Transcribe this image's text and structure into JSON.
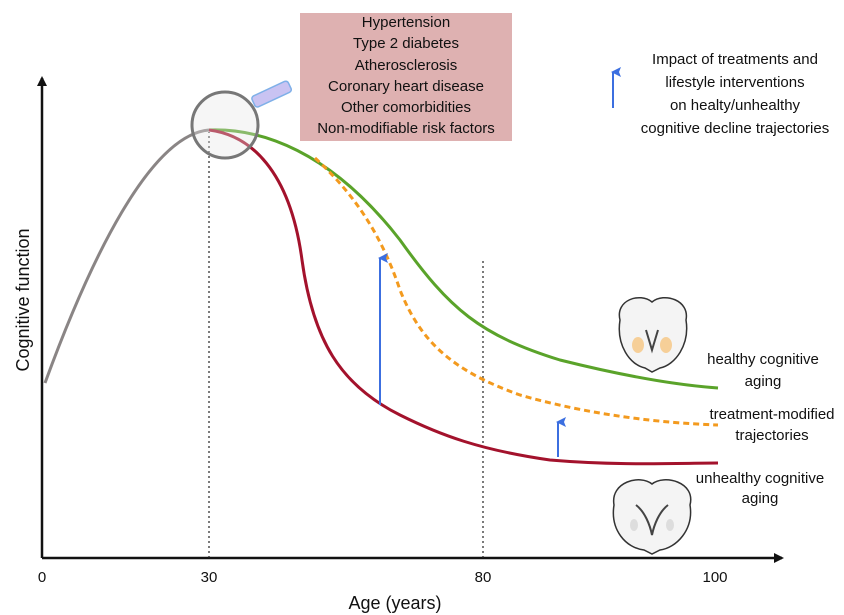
{
  "axes": {
    "x_title": "Age (years)",
    "y_title": "Cognitive function",
    "x_ticks": [
      0,
      30,
      80,
      100
    ]
  },
  "risk_factors": [
    "Hypertension",
    "Type 2 diabetes",
    "Atherosclerosis",
    "Coronary heart disease",
    "Other comorbidities",
    "Non-modifiable risk factors"
  ],
  "legend": [
    "Impact of treatments and",
    "lifestyle interventions",
    "on healty/unhealthy",
    "cognitive decline trajectories"
  ],
  "curve_labels": {
    "healthy": [
      "healthy cognitive",
      "aging"
    ],
    "treatment": [
      "treatment-modified",
      "trajectories"
    ],
    "unhealthy": [
      "unhealthy cognitive",
      "aging"
    ]
  }
}
